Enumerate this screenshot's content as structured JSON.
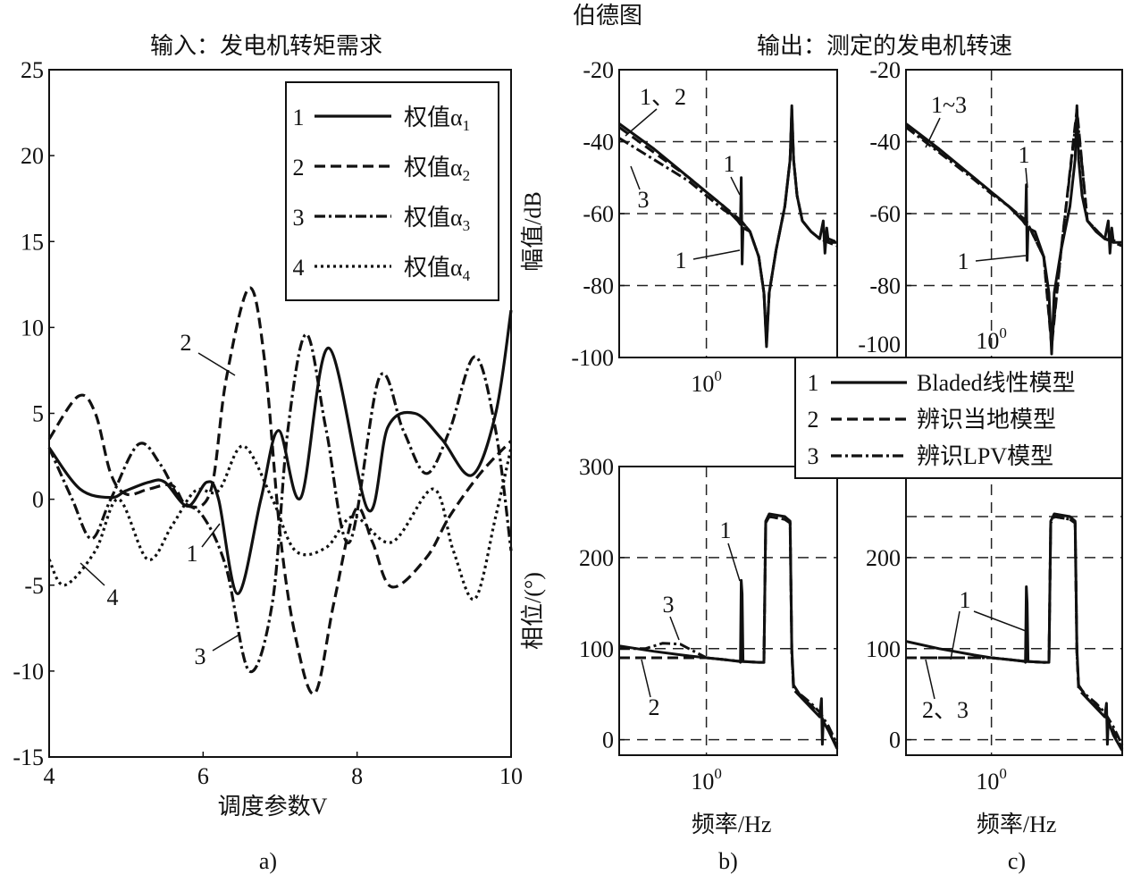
{
  "figure_title": "伯德图",
  "captions": [
    "a)",
    "b)",
    "c)"
  ],
  "chart_data": [
    {
      "id": "a",
      "type": "line",
      "title": "输入：发电机转矩需求",
      "xlabel": "调度参数V",
      "ylabel": "",
      "xlim": [
        4,
        10
      ],
      "ylim": [
        -15,
        25
      ],
      "xticks": [
        4,
        6,
        8,
        10
      ],
      "yticks": [
        -15,
        -10,
        -5,
        0,
        5,
        10,
        15,
        20,
        25
      ],
      "grid": false,
      "legend_position": "top-right",
      "series": [
        {
          "num": "1",
          "name": "权值α",
          "sub": "1",
          "style": "solid",
          "x": [
            4,
            4.4,
            4.8,
            5.0,
            5.3,
            5.5,
            5.8,
            6.05,
            6.2,
            6.45,
            6.75,
            6.98,
            7.27,
            7.63,
            8.14,
            8.4,
            8.75,
            9.1,
            9.49,
            9.8,
            10
          ],
          "y": [
            3,
            0.6,
            0.1,
            0.5,
            1,
            1,
            -0.4,
            1,
            0,
            -5.5,
            0,
            4,
            0.1,
            8.8,
            -0.6,
            4.2,
            5,
            3.5,
            1.4,
            5,
            11
          ]
        },
        {
          "num": "2",
          "name": "权值α",
          "sub": "2",
          "style": "dashed",
          "x": [
            4,
            4.38,
            4.6,
            4.8,
            5.0,
            5.3,
            5.6,
            5.8,
            6.1,
            6.3,
            6.6,
            6.8,
            7.0,
            7.2,
            7.45,
            7.7,
            7.98,
            8.2,
            8.45,
            8.9,
            9.2,
            9.6,
            10
          ],
          "y": [
            3.5,
            6,
            5,
            1.5,
            0.3,
            0.6,
            0.8,
            -0.4,
            0.5,
            7,
            12.3,
            8,
            -2,
            -8,
            -11.3,
            -6,
            -0.6,
            -2.5,
            -5.1,
            -3.4,
            -1,
            1.5,
            3.4
          ]
        },
        {
          "num": "3",
          "name": "权值α",
          "sub": "3",
          "style": "dashdot",
          "x": [
            4,
            4.3,
            4.55,
            4.8,
            5.16,
            5.45,
            5.7,
            6.0,
            6.3,
            6.6,
            6.9,
            7.1,
            7.34,
            7.6,
            7.9,
            8.29,
            8.6,
            8.9,
            9.2,
            9.53,
            9.8,
            10
          ],
          "y": [
            3,
            0,
            -2.3,
            0,
            3.2,
            2,
            0,
            -1,
            -4,
            -10,
            -6,
            4,
            9.6,
            4,
            -2.5,
            7.1,
            4,
            1.5,
            4,
            8.3,
            4,
            -3
          ]
        },
        {
          "num": "4",
          "name": "权值α",
          "sub": "4",
          "style": "dotted",
          "x": [
            4,
            4.2,
            4.6,
            4.9,
            5.28,
            5.6,
            5.9,
            6.2,
            6.52,
            6.9,
            7.2,
            7.6,
            7.95,
            8.45,
            8.99,
            9.25,
            9.53,
            9.8,
            10
          ],
          "y": [
            -3.5,
            -5,
            -3,
            0,
            -3.5,
            -1.5,
            0.5,
            0.5,
            3.1,
            0,
            -3,
            -2.8,
            -1,
            -2.5,
            0.6,
            -3,
            -5.8,
            -1,
            3
          ]
        }
      ],
      "annotations": [
        "2",
        "1",
        "3",
        "4"
      ]
    },
    {
      "id": "b_mag",
      "type": "line",
      "title": "输出：测定的发电机转速",
      "xlabel": "",
      "ylabel": "幅值/dB",
      "xscale": "log10",
      "xlim_log10": [
        -0.5,
        0.75
      ],
      "ylim": [
        -100,
        -20
      ],
      "xticks": [
        {
          "base": "10",
          "exp": "0"
        }
      ],
      "yticks": [
        -100,
        -80,
        -60,
        -40,
        -20
      ],
      "grid": "dashed",
      "series": [
        {
          "num": "1",
          "style": "solid",
          "x": [
            -0.5,
            -0.3,
            -0.1,
            0,
            0.1,
            0.18,
            0.195,
            0.2,
            0.205,
            0.21,
            0.25,
            0.3,
            0.33,
            0.345,
            0.36,
            0.4,
            0.45,
            0.48,
            0.49,
            0.5,
            0.52,
            0.55,
            0.6,
            0.65,
            0.67,
            0.68,
            0.69,
            0.7,
            0.75
          ],
          "y": [
            -35,
            -42,
            -50,
            -54,
            -58,
            -62,
            -63,
            -50,
            -74,
            -64,
            -65,
            -72,
            -82,
            -97,
            -82,
            -70,
            -58,
            -45,
            -30,
            -45,
            -55,
            -62,
            -65,
            -67,
            -62,
            -71,
            -64,
            -68,
            -68
          ]
        },
        {
          "num": "2",
          "style": "dashed",
          "x": [
            -0.5,
            -0.3,
            -0.1,
            0,
            0.1,
            0.2,
            0.25,
            0.3,
            0.33,
            0.345,
            0.36,
            0.4,
            0.45,
            0.48,
            0.49,
            0.5,
            0.52,
            0.55,
            0.6,
            0.65,
            0.7,
            0.75
          ],
          "y": [
            -36,
            -43,
            -50,
            -54,
            -58,
            -62,
            -65,
            -72,
            -82,
            -96,
            -82,
            -70,
            -58,
            -45,
            -31,
            -45,
            -55,
            -62,
            -65,
            -67,
            -67,
            -68
          ]
        },
        {
          "num": "3",
          "style": "dashdot",
          "x": [
            -0.5,
            -0.3,
            -0.1,
            0,
            0.1,
            0.2,
            0.25,
            0.3,
            0.33,
            0.345,
            0.36,
            0.4,
            0.45,
            0.48,
            0.49,
            0.5,
            0.52,
            0.55,
            0.6,
            0.65,
            0.7,
            0.75
          ],
          "y": [
            -39,
            -45,
            -51,
            -55,
            -59,
            -62,
            -65,
            -72,
            -82,
            -95,
            -82,
            -70,
            -58,
            -45,
            -32,
            -45,
            -55,
            -62,
            -65,
            -67,
            -68,
            -69
          ]
        }
      ],
      "annotations": [
        "1、2",
        "3",
        "1",
        "1"
      ]
    },
    {
      "id": "c_mag",
      "type": "line",
      "xscale": "log10",
      "xlim_log10": [
        -0.49,
        0.75
      ],
      "ylim": [
        -100,
        -20
      ],
      "xticks": [
        {
          "base": "10",
          "exp": "0"
        }
      ],
      "yticks": [
        -100,
        -80,
        -60,
        -40,
        -20
      ],
      "grid": "dashed",
      "series": [
        {
          "num": "1",
          "style": "solid",
          "x": [
            -0.49,
            -0.3,
            -0.1,
            0,
            0.1,
            0.18,
            0.195,
            0.2,
            0.205,
            0.21,
            0.25,
            0.3,
            0.33,
            0.345,
            0.36,
            0.4,
            0.45,
            0.48,
            0.49,
            0.5,
            0.52,
            0.55,
            0.6,
            0.65,
            0.67,
            0.68,
            0.69,
            0.7,
            0.75
          ],
          "y": [
            -35,
            -42,
            -50,
            -54,
            -58,
            -62,
            -63,
            -52,
            -73,
            -64,
            -65,
            -72,
            -82,
            -99,
            -82,
            -70,
            -58,
            -45,
            -30,
            -45,
            -55,
            -62,
            -65,
            -67,
            -62,
            -71,
            -64,
            -68,
            -68
          ]
        },
        {
          "num": "2",
          "style": "dashed",
          "x": [
            -0.49,
            -0.3,
            -0.1,
            0,
            0.1,
            0.2,
            0.3,
            0.345,
            0.4,
            0.49,
            0.55,
            0.65,
            0.75
          ],
          "y": [
            -35.5,
            -42.5,
            -50,
            -54,
            -58,
            -62,
            -72,
            -97,
            -70,
            -31,
            -62,
            -67,
            -68
          ]
        },
        {
          "num": "3",
          "style": "dashdot",
          "x": [
            -0.49,
            -0.3,
            -0.1,
            0,
            0.1,
            0.2,
            0.3,
            0.345,
            0.4,
            0.49,
            0.55,
            0.65,
            0.75
          ],
          "y": [
            -36,
            -43,
            -50.5,
            -54.5,
            -58,
            -62,
            -72,
            -96,
            -70,
            -32,
            -62,
            -67,
            -69
          ]
        }
      ],
      "annotations": [
        "1~3",
        "1",
        "1"
      ]
    },
    {
      "id": "b_phase",
      "type": "line",
      "xlabel": "频率/Hz",
      "ylabel": "相位/(°)",
      "xscale": "log10",
      "xlim_log10": [
        -0.5,
        0.75
      ],
      "ylim": [
        -17,
        300
      ],
      "xticks": [
        {
          "base": "10",
          "exp": "0"
        }
      ],
      "yticks": [
        0,
        100,
        200,
        300
      ],
      "grid": "dashed",
      "series": [
        {
          "num": "1",
          "style": "solid",
          "x": [
            -0.5,
            -0.3,
            -0.1,
            0,
            0.1,
            0.19,
            0.195,
            0.2,
            0.205,
            0.21,
            0.3,
            0.33,
            0.34,
            0.36,
            0.45,
            0.48,
            0.49,
            0.5,
            0.55,
            0.6,
            0.65,
            0.66,
            0.665,
            0.67,
            0.7,
            0.75
          ],
          "y": [
            103,
            97,
            92,
            90,
            88,
            86,
            85,
            175,
            160,
            86,
            85,
            85,
            240,
            248,
            245,
            240,
            100,
            60,
            45,
            35,
            25,
            45,
            -5,
            20,
            10,
            -10
          ]
        },
        {
          "num": "2",
          "style": "dashed",
          "x": [
            -0.5,
            -0.3,
            -0.1,
            0,
            0.1,
            0.2,
            0.3,
            0.33,
            0.34,
            0.36,
            0.45,
            0.48,
            0.49,
            0.5,
            0.55,
            0.6,
            0.65,
            0.7,
            0.75
          ],
          "y": [
            90,
            90,
            90,
            90,
            88,
            86,
            85,
            85,
            238,
            245,
            242,
            238,
            95,
            55,
            45,
            38,
            28,
            12,
            -8
          ]
        },
        {
          "num": "3",
          "style": "dashdot",
          "x": [
            -0.5,
            -0.35,
            -0.25,
            -0.15,
            -0.05,
            0,
            0.1,
            0.2,
            0.3,
            0.33,
            0.34,
            0.36,
            0.45,
            0.48,
            0.49,
            0.5,
            0.55,
            0.6,
            0.65,
            0.7,
            0.75
          ],
          "y": [
            100,
            100,
            106,
            105,
            95,
            90,
            88,
            86,
            85,
            85,
            238,
            245,
            242,
            238,
            95,
            55,
            48,
            40,
            30,
            15,
            -5
          ]
        }
      ],
      "annotations": [
        "1",
        "3",
        "2"
      ]
    },
    {
      "id": "c_phase",
      "type": "line",
      "xlabel": "频率/Hz",
      "xscale": "log10",
      "xlim_log10": [
        -0.49,
        0.75
      ],
      "ylim": [
        -17,
        300
      ],
      "xticks": [
        {
          "base": "10",
          "exp": "0"
        }
      ],
      "yticks": [
        0,
        100,
        200
      ],
      "grid": "dashed",
      "series": [
        {
          "num": "1",
          "style": "solid",
          "x": [
            -0.49,
            -0.3,
            -0.1,
            0,
            0.1,
            0.19,
            0.195,
            0.2,
            0.205,
            0.21,
            0.3,
            0.33,
            0.34,
            0.36,
            0.45,
            0.48,
            0.49,
            0.5,
            0.55,
            0.6,
            0.65,
            0.66,
            0.665,
            0.67,
            0.7,
            0.75
          ],
          "y": [
            108,
            100,
            93,
            90,
            88,
            86,
            85,
            168,
            150,
            86,
            85,
            85,
            240,
            248,
            245,
            240,
            100,
            60,
            45,
            35,
            25,
            40,
            -5,
            20,
            5,
            -12
          ]
        },
        {
          "num": "2",
          "style": "dashed",
          "x": [
            -0.49,
            -0.3,
            -0.1,
            0,
            0.1,
            0.2,
            0.3,
            0.33,
            0.34,
            0.36,
            0.45,
            0.48,
            0.49,
            0.5,
            0.55,
            0.6,
            0.65,
            0.7,
            0.75
          ],
          "y": [
            90,
            90,
            90,
            90,
            88,
            86,
            85,
            85,
            238,
            245,
            242,
            238,
            95,
            55,
            45,
            38,
            28,
            10,
            -10
          ]
        },
        {
          "num": "3",
          "style": "dashdot",
          "x": [
            -0.49,
            -0.3,
            -0.1,
            0,
            0.1,
            0.2,
            0.3,
            0.33,
            0.34,
            0.36,
            0.45,
            0.48,
            0.49,
            0.5,
            0.55,
            0.6,
            0.65,
            0.7,
            0.75
          ],
          "y": [
            90,
            90,
            90,
            90,
            88,
            86,
            85,
            85,
            238,
            245,
            242,
            238,
            95,
            58,
            48,
            40,
            30,
            14,
            -6
          ]
        }
      ],
      "annotations": [
        "1",
        "2、3"
      ]
    }
  ],
  "bode_legend": [
    {
      "num": "1",
      "label": "Bladed线性模型",
      "style": "solid"
    },
    {
      "num": "2",
      "label": "辨识当地模型",
      "style": "dashed"
    },
    {
      "num": "3",
      "label": "辨识LPV模型",
      "style": "dashdot"
    }
  ]
}
